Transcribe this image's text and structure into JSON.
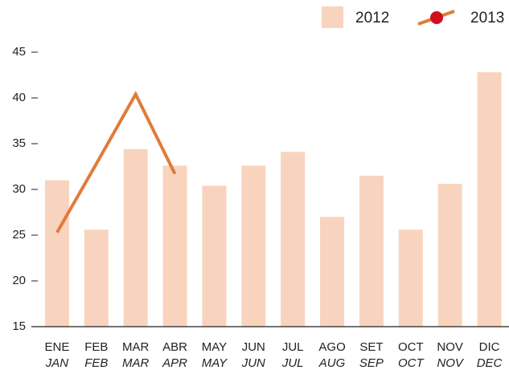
{
  "chart_data": {
    "type": "bar_line",
    "categories": [
      "ENE",
      "FEB",
      "MAR",
      "ABR",
      "MAY",
      "JUN",
      "JUL",
      "AGO",
      "SET",
      "OCT",
      "NOV",
      "DIC"
    ],
    "categories_secondary": [
      "JAN",
      "FEB",
      "MAR",
      "APR",
      "MAY",
      "JUN",
      "JUL",
      "AUG",
      "SEP",
      "OCT",
      "NOV",
      "DEC"
    ],
    "series": [
      {
        "name": "2012",
        "type": "bar",
        "color": "#f8d4be",
        "values": [
          31.0,
          25.6,
          34.4,
          32.6,
          30.4,
          32.6,
          34.1,
          27.0,
          31.5,
          25.6,
          30.6,
          42.8
        ]
      },
      {
        "name": "2013",
        "type": "line",
        "color": "#e07b3c",
        "marker_color": "#d0101e",
        "values": [
          25.3,
          32.8,
          40.4,
          31.7,
          null,
          null,
          null,
          null,
          null,
          null,
          null,
          null
        ]
      }
    ],
    "ylim": [
      15,
      45
    ],
    "yticks": [
      15,
      20,
      25,
      30,
      35,
      40,
      45
    ],
    "legend": "top-right"
  }
}
